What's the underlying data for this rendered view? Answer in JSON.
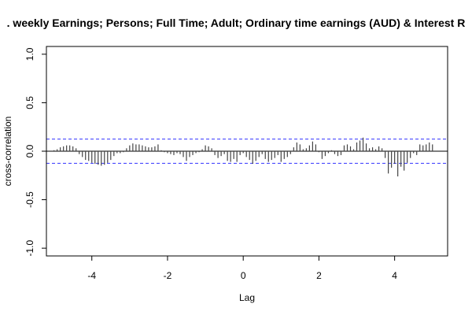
{
  "chart_data": {
    "type": "bar",
    "title": ". weekly Earnings; Persons; Full Time; Adult; Ordinary time earnings (AUD) & Interest R",
    "xlabel": "Lag",
    "ylabel": "cross-correlation",
    "xlim": [
      -5.2,
      5.4
    ],
    "ylim": [
      -1.08,
      1.08
    ],
    "xticks": [
      -4,
      -2,
      0,
      2,
      4
    ],
    "xtick_labels": [
      "-4",
      "-2",
      "0",
      "2",
      "4"
    ],
    "yticks": [
      -1.0,
      -0.5,
      0.0,
      0.5,
      1.0
    ],
    "ytick_labels": [
      "-1.0",
      "-0.5",
      "0.0",
      "0.5",
      "1.0"
    ],
    "significance_bounds": [
      0.125,
      -0.125
    ],
    "bound_color": "#3333ff",
    "bar_color": "#444444",
    "lags": [
      -5.0,
      -4.9167,
      -4.8333,
      -4.75,
      -4.6667,
      -4.5833,
      -4.5,
      -4.4167,
      -4.3333,
      -4.25,
      -4.1667,
      -4.0833,
      -4.0,
      -3.9167,
      -3.8333,
      -3.75,
      -3.6667,
      -3.5833,
      -3.5,
      -3.4167,
      -3.3333,
      -3.25,
      -3.1667,
      -3.0833,
      -3.0,
      -2.9167,
      -2.8333,
      -2.75,
      -2.6667,
      -2.5833,
      -2.5,
      -2.4167,
      -2.3333,
      -2.25,
      -2.1667,
      -2.0833,
      -2.0,
      -1.9167,
      -1.8333,
      -1.75,
      -1.6667,
      -1.5833,
      -1.5,
      -1.4167,
      -1.3333,
      -1.25,
      -1.1667,
      -1.0833,
      -1.0,
      -0.9167,
      -0.8333,
      -0.75,
      -0.6667,
      -0.5833,
      -0.5,
      -0.4167,
      -0.3333,
      -0.25,
      -0.1667,
      -0.0833,
      0.0,
      0.0833,
      0.1667,
      0.25,
      0.3333,
      0.4167,
      0.5,
      0.5833,
      0.6667,
      0.75,
      0.8333,
      0.9167,
      1.0,
      1.0833,
      1.1667,
      1.25,
      1.3333,
      1.4167,
      1.5,
      1.5833,
      1.6667,
      1.75,
      1.8333,
      1.9167,
      2.0,
      2.0833,
      2.1667,
      2.25,
      2.3333,
      2.4167,
      2.5,
      2.5833,
      2.6667,
      2.75,
      2.8333,
      2.9167,
      3.0,
      3.0833,
      3.1667,
      3.25,
      3.3333,
      3.4167,
      3.5,
      3.5833,
      3.6667,
      3.75,
      3.8333,
      3.9167,
      4.0,
      4.0833,
      4.1667,
      4.25,
      4.3333,
      4.4167,
      4.5,
      4.5833,
      4.6667,
      4.75,
      4.8333,
      4.9167,
      5.0
    ],
    "values": [
      0.01,
      0.02,
      0.04,
      0.05,
      0.06,
      0.06,
      0.05,
      0.03,
      -0.03,
      -0.06,
      -0.09,
      -0.1,
      -0.12,
      -0.13,
      -0.14,
      -0.15,
      -0.14,
      -0.12,
      -0.09,
      -0.05,
      -0.02,
      -0.02,
      -0.01,
      0.03,
      0.06,
      0.08,
      0.07,
      0.07,
      0.06,
      0.05,
      0.04,
      0.04,
      0.05,
      0.07,
      0.01,
      -0.01,
      -0.02,
      -0.03,
      -0.04,
      -0.02,
      -0.03,
      -0.06,
      -0.1,
      -0.06,
      -0.04,
      -0.02,
      -0.01,
      0.02,
      0.06,
      0.05,
      0.03,
      -0.04,
      -0.07,
      -0.05,
      -0.03,
      -0.1,
      -0.11,
      -0.08,
      -0.11,
      -0.04,
      -0.02,
      -0.06,
      -0.09,
      -0.13,
      -0.1,
      -0.06,
      -0.03,
      -0.08,
      -0.11,
      -0.09,
      -0.07,
      -0.04,
      -0.11,
      -0.08,
      -0.06,
      -0.03,
      0.04,
      0.09,
      0.07,
      0.02,
      0.03,
      0.06,
      0.1,
      0.07,
      -0.01,
      -0.08,
      -0.05,
      -0.02,
      0.01,
      -0.03,
      -0.05,
      -0.04,
      0.06,
      0.07,
      0.05,
      0.02,
      0.09,
      0.11,
      0.14,
      0.08,
      0.03,
      0.04,
      0.02,
      0.05,
      0.03,
      -0.07,
      -0.23,
      -0.17,
      -0.13,
      -0.26,
      -0.16,
      -0.2,
      -0.12,
      -0.07,
      -0.02,
      -0.04,
      0.07,
      0.06,
      0.07,
      0.09,
      0.07
    ]
  }
}
